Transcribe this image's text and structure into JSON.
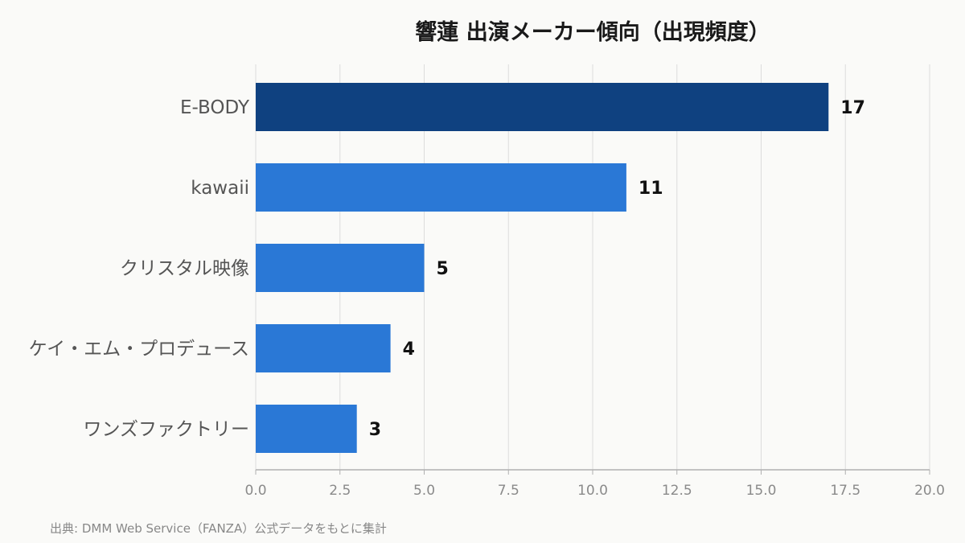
{
  "chart_data": {
    "type": "bar",
    "orientation": "horizontal",
    "title": "響蓮 出演メーカー傾向（出現頻度）",
    "categories": [
      "E-BODY",
      "kawaii",
      "クリスタル映像",
      "ケイ・エム・プロデュース",
      "ワンズファクトリー"
    ],
    "values": [
      17,
      11,
      5,
      4,
      3
    ],
    "xlim": [
      0,
      20
    ],
    "xticks": [
      "0.0",
      "2.5",
      "5.0",
      "7.5",
      "10.0",
      "12.5",
      "15.0",
      "17.5",
      "20.0"
    ],
    "grid": true,
    "highlight_color": "#0f4180",
    "bar_color": "#2a78d6"
  },
  "source": "出典: DMM Web Service（FANZA）公式データをもとに集計"
}
